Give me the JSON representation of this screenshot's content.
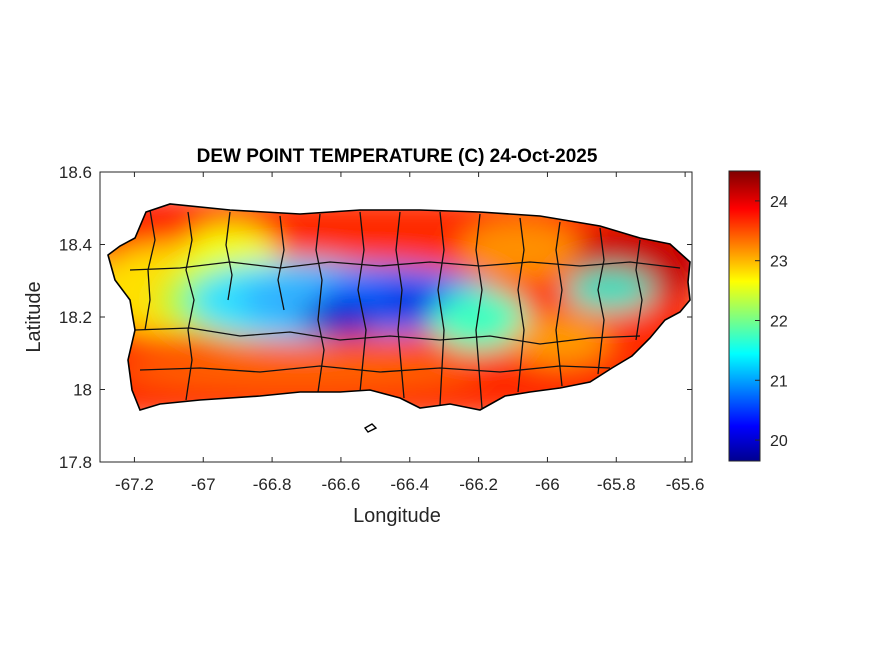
{
  "chart_data": {
    "type": "heatmap",
    "title": "DEW POINT TEMPERATURE (C) 24-Oct-2025",
    "xlabel": "Longitude",
    "ylabel": "Latitude",
    "xlim": [
      -67.3,
      -65.58
    ],
    "ylim": [
      17.8,
      18.6
    ],
    "x_ticks": [
      -67.2,
      -67,
      -66.8,
      -66.6,
      -66.4,
      -66.2,
      -66,
      -65.8,
      -65.6
    ],
    "x_tick_labels": [
      "-67.2",
      "-67",
      "-66.8",
      "-66.6",
      "-66.4",
      "-66.2",
      "-66",
      "-65.8",
      "-65.6"
    ],
    "y_ticks": [
      17.8,
      18,
      18.2,
      18.4,
      18.6
    ],
    "y_tick_labels": [
      "17.8",
      "18",
      "18.2",
      "18.4",
      "18.6"
    ],
    "colorbar": {
      "colormap": "jet",
      "range": [
        19.65,
        24.5
      ],
      "ticks": [
        20,
        21,
        22,
        23,
        24
      ],
      "tick_labels": [
        "20",
        "21",
        "22",
        "23",
        "24"
      ]
    },
    "field_summary": {
      "coast_north_east_south": 24,
      "west": 22.8,
      "central_interior_min": 19.9
    },
    "grid": false
  }
}
